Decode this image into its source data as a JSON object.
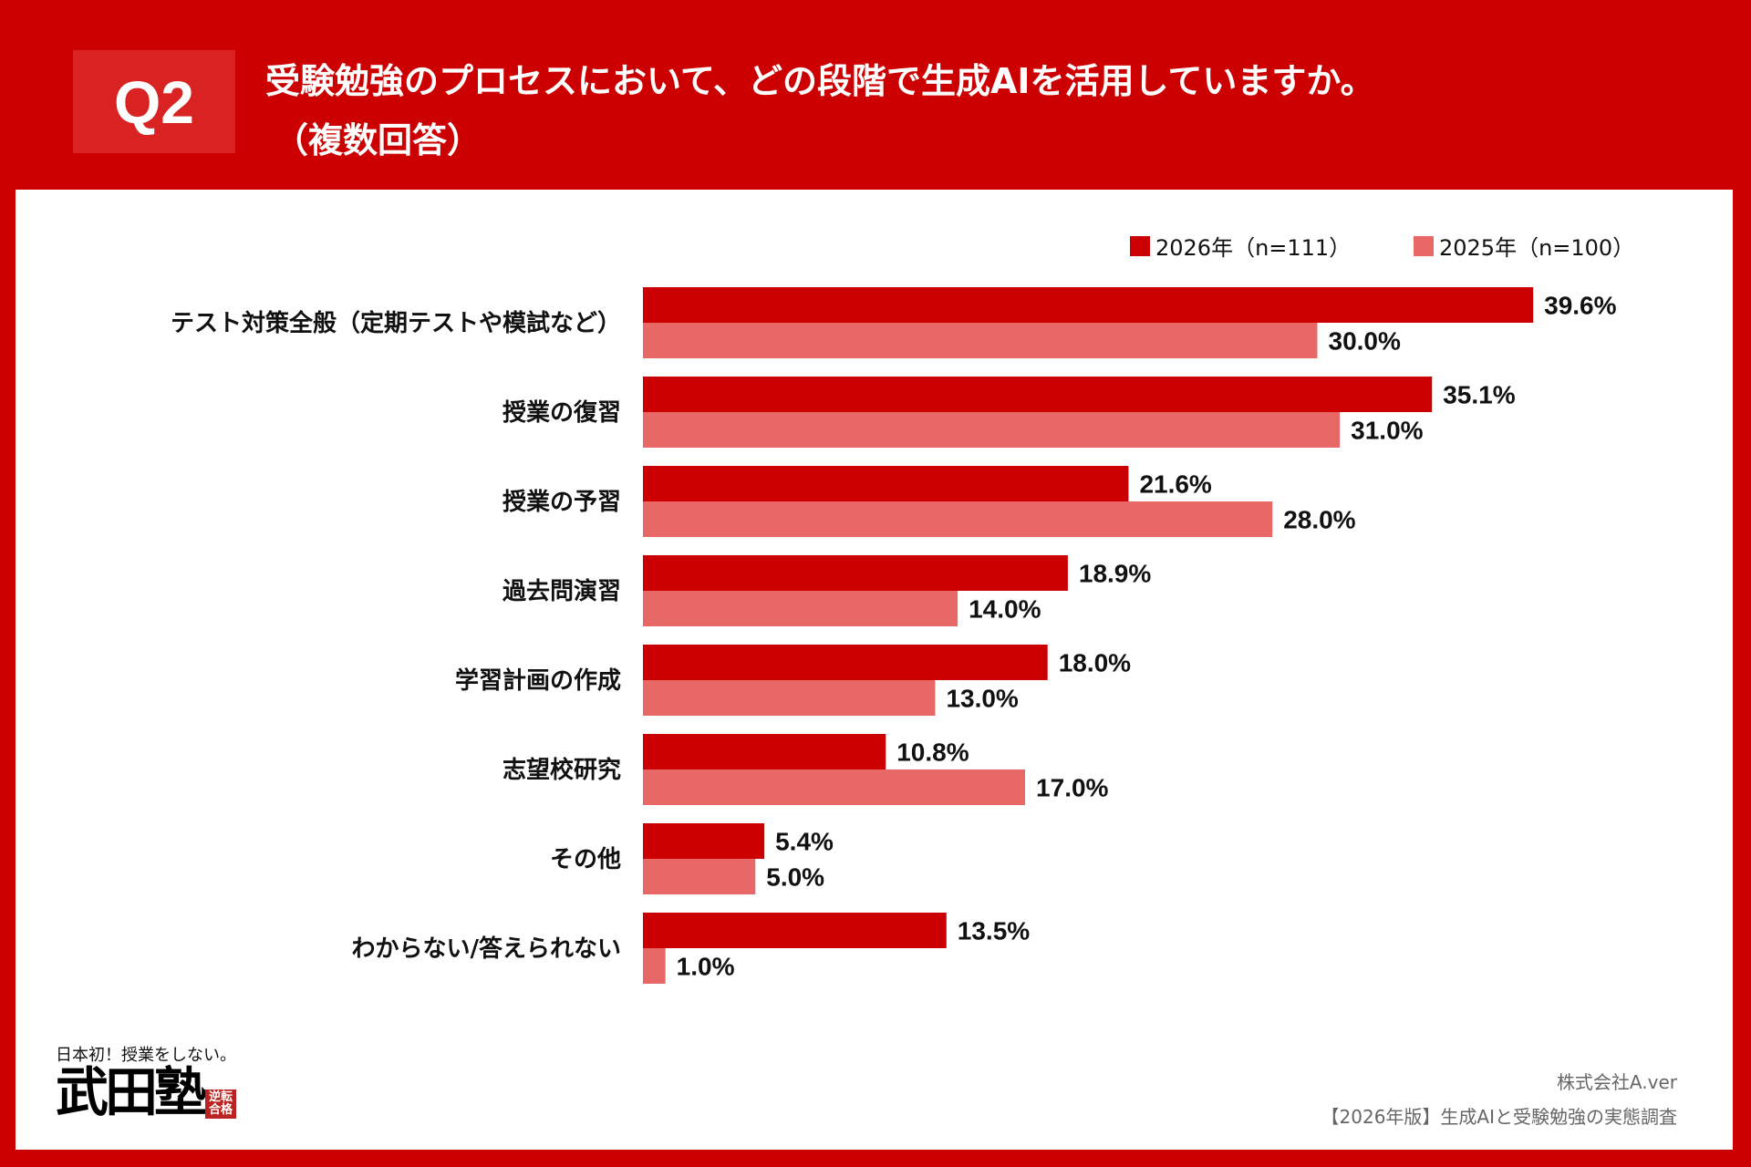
{
  "header": {
    "q_label": "Q2",
    "title_line1": "受験勉強のプロセスにおいて、どの段階で生成AIを活用していますか。",
    "title_line2": "（複数回答）"
  },
  "colors": {
    "background": "#cc0000",
    "series_2026": "#cc0000",
    "series_2025": "#e86868"
  },
  "chart_data": {
    "type": "bar",
    "orientation": "horizontal",
    "categories": [
      "テスト対策全般（定期テストや模試など）",
      "授業の復習",
      "授業の予習",
      "過去問演習",
      "学習計画の作成",
      "志望校研究",
      "その他",
      "わからない/答えられない"
    ],
    "series": [
      {
        "name": "2026年（n=111）",
        "values": [
          39.6,
          35.1,
          21.6,
          18.9,
          18.0,
          10.8,
          5.4,
          13.5
        ],
        "labels": [
          "39.6%",
          "35.1%",
          "21.6%",
          "18.9%",
          "18.0%",
          "10.8%",
          "5.4%",
          "13.5%"
        ]
      },
      {
        "name": "2025年（n=100）",
        "values": [
          30.0,
          31.0,
          28.0,
          14.0,
          13.0,
          17.0,
          5.0,
          1.0
        ],
        "labels": [
          "30.0%",
          "31.0%",
          "28.0%",
          "14.0%",
          "13.0%",
          "17.0%",
          "5.0%",
          "1.0%"
        ]
      }
    ],
    "unit": "%",
    "grid": false,
    "legend_position": "top-right"
  },
  "footer": {
    "company": "株式会社A.ver",
    "survey": "【2026年版】生成AIと受験勉強の実態調査"
  },
  "logo": {
    "tagline": "日本初！授業をしない。",
    "name": "武田塾",
    "seal": "逆転合格"
  }
}
